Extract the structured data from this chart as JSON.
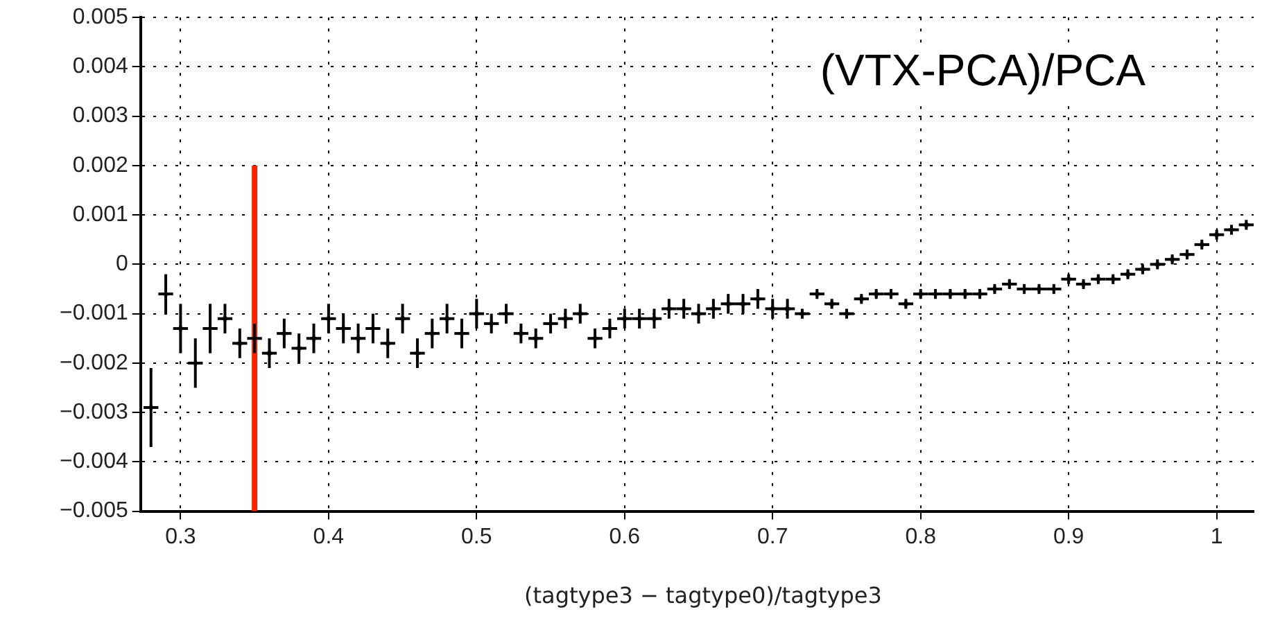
{
  "chart_data": {
    "type": "scatter",
    "xlabel": "(tagtype3 − tagtype0)/tagtype3",
    "annotations": [
      "(VTX-PCA)/PCA"
    ],
    "xlim": [
      0.273,
      1.025
    ],
    "xticks": [
      0.3,
      0.4,
      0.5,
      0.6,
      0.7,
      0.8,
      0.9,
      1
    ],
    "ylim": [
      -0.005,
      0.005
    ],
    "yticks": [
      -0.005,
      -0.004,
      -0.003,
      -0.002,
      -0.001,
      0,
      0.001,
      0.002,
      0.003,
      0.004,
      0.005
    ],
    "grid": true,
    "legend": false,
    "marker": "cross",
    "series": [
      {
        "type": "line",
        "marker": "none",
        "color": "#ff2200",
        "x": [
          0.35,
          0.35
        ],
        "values": [
          -0.005,
          0.002
        ]
      },
      {
        "color": "#000000",
        "x": [
          0.28,
          0.29,
          0.3,
          0.31,
          0.32,
          0.33,
          0.34,
          0.35,
          0.36,
          0.37,
          0.38,
          0.39,
          0.4,
          0.41,
          0.42,
          0.43,
          0.44,
          0.45,
          0.46,
          0.47,
          0.48,
          0.49,
          0.5,
          0.51,
          0.52,
          0.53,
          0.54,
          0.55,
          0.56,
          0.57,
          0.58,
          0.59,
          0.6,
          0.61,
          0.62,
          0.63,
          0.64,
          0.65,
          0.66,
          0.67,
          0.68,
          0.69,
          0.7,
          0.71,
          0.72,
          0.73,
          0.74,
          0.75,
          0.76,
          0.77,
          0.78,
          0.79,
          0.8,
          0.81,
          0.82,
          0.83,
          0.84,
          0.85,
          0.86,
          0.87,
          0.88,
          0.89,
          0.9,
          0.91,
          0.92,
          0.93,
          0.94,
          0.95,
          0.96,
          0.97,
          0.98,
          0.99,
          1.0,
          1.01,
          1.02
        ],
        "values": [
          -0.0029,
          -0.0006,
          -0.0013,
          -0.002,
          -0.0013,
          -0.0011,
          -0.0016,
          -0.0015,
          -0.0018,
          -0.0014,
          -0.0017,
          -0.0015,
          -0.0011,
          -0.0013,
          -0.0015,
          -0.0013,
          -0.0016,
          -0.0011,
          -0.0018,
          -0.0014,
          -0.0011,
          -0.0014,
          -0.001,
          -0.0012,
          -0.001,
          -0.0014,
          -0.0015,
          -0.0012,
          -0.0011,
          -0.001,
          -0.0015,
          -0.0013,
          -0.0011,
          -0.0011,
          -0.0011,
          -0.0009,
          -0.0009,
          -0.001,
          -0.0009,
          -0.0008,
          -0.0008,
          -0.0007,
          -0.0009,
          -0.0009,
          -0.001,
          -0.0006,
          -0.0008,
          -0.001,
          -0.0007,
          -0.0006,
          -0.0006,
          -0.0008,
          -0.0006,
          -0.0006,
          -0.0006,
          -0.0006,
          -0.0006,
          -0.0005,
          -0.0004,
          -0.0005,
          -0.0005,
          -0.0005,
          -0.0003,
          -0.0004,
          -0.0003,
          -0.0003,
          -0.0002,
          -0.0001,
          0,
          0.0001,
          0.0002,
          0.0004,
          0.0006,
          0.0007,
          0.0008
        ],
        "errors": [
          0.0008,
          0.0004,
          0.0005,
          0.0005,
          0.0005,
          0.0003,
          0.0003,
          0.0003,
          0.0003,
          0.0003,
          0.0003,
          0.0003,
          0.0003,
          0.0003,
          0.0003,
          0.0003,
          0.0003,
          0.0003,
          0.0003,
          0.0003,
          0.0003,
          0.0003,
          0.0003,
          0.0002,
          0.0002,
          0.0002,
          0.0002,
          0.0002,
          0.0002,
          0.0002,
          0.0002,
          0.0002,
          0.0002,
          0.0002,
          0.0002,
          0.0002,
          0.0002,
          0.0002,
          0.0002,
          0.0002,
          0.0002,
          0.0002,
          0.0002,
          0.0002,
          0.0001,
          0.0001,
          0.0001,
          0.0001,
          0.0001,
          0.0001,
          0.0001,
          0.0001,
          0.0001,
          0.0001,
          0.0001,
          0.0001,
          0.0001,
          0.0001,
          0.0001,
          0.0001,
          0.0001,
          0.0001,
          0.0001,
          0.0001,
          0.0001,
          0.0001,
          0.0001,
          0.0001,
          0.0001,
          0.0001,
          0.0001,
          0.0001,
          0.0001,
          0.0001,
          0.0001
        ],
        "xerrors": [
          0.005,
          0.005,
          0.005,
          0.005,
          0.005,
          0.005,
          0.005,
          0.005,
          0.005,
          0.005,
          0.005,
          0.005,
          0.005,
          0.005,
          0.005,
          0.005,
          0.005,
          0.005,
          0.005,
          0.005,
          0.005,
          0.005,
          0.005,
          0.005,
          0.005,
          0.005,
          0.005,
          0.005,
          0.005,
          0.005,
          0.005,
          0.005,
          0.005,
          0.005,
          0.005,
          0.005,
          0.005,
          0.005,
          0.005,
          0.005,
          0.005,
          0.005,
          0.005,
          0.005,
          0.005,
          0.005,
          0.005,
          0.005,
          0.005,
          0.005,
          0.005,
          0.005,
          0.005,
          0.005,
          0.005,
          0.005,
          0.005,
          0.005,
          0.005,
          0.005,
          0.005,
          0.005,
          0.005,
          0.005,
          0.005,
          0.005,
          0.005,
          0.005,
          0.005,
          0.005,
          0.005,
          0.005,
          0.005,
          0.005,
          0.005
        ]
      }
    ]
  }
}
